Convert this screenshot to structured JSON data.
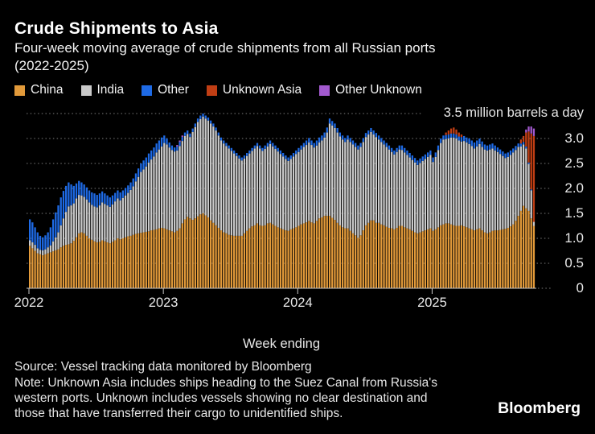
{
  "header": {
    "title": "Crude Shipments to Asia",
    "subtitle_lines": [
      "Four-week moving average of crude shipments from all Russian ports",
      "(2022-2025)"
    ]
  },
  "footer": {
    "source": "Source: Vessel tracking data monitored by Bloomberg",
    "note_lines": [
      "Note: Unknown Asia includes ships heading to the Suez Canal from Russia's",
      "western ports. Unknown includes vessels showing no clear destination and",
      "those that have transferred their cargo to unidentified ships."
    ],
    "brand": "Bloomberg"
  },
  "chart_data": {
    "type": "bar",
    "stacked": true,
    "title": "Crude Shipments to Asia",
    "subtitle": "Four-week moving average of crude shipments from all Russian ports (2022-2025)",
    "unit": "million barrels a day",
    "x_label": "Week ending",
    "legend_position": "top",
    "grid": "dotted-horizontal",
    "background_color": "#000000",
    "y_axis": {
      "min": 0,
      "max": 3.5,
      "ticks": [
        {
          "label": "0",
          "value": 0
        },
        {
          "label": "0.5",
          "value": 0.5
        },
        {
          "label": "1.0",
          "value": 1.0
        },
        {
          "label": "1.5",
          "value": 1.5
        },
        {
          "label": "2.0",
          "value": 2.0
        },
        {
          "label": "2.5",
          "value": 2.5
        },
        {
          "label": "3.0",
          "value": 3.0
        }
      ],
      "top_tick": {
        "label": "3.5 million barrels a day",
        "value": 3.5
      }
    },
    "x_axis": {
      "unit": "week",
      "ticks": [
        {
          "label": "2022",
          "week": 0
        },
        {
          "label": "2023",
          "week": 52
        },
        {
          "label": "2024",
          "week": 104
        },
        {
          "label": "2025",
          "week": 156
        }
      ]
    },
    "series": [
      {
        "key": "china",
        "name": "China",
        "color": "#E29A3A"
      },
      {
        "key": "india",
        "name": "India",
        "color": "#C9C9C9"
      },
      {
        "key": "other",
        "name": "Other",
        "color": "#1E6AE5"
      },
      {
        "key": "unknown_asia",
        "name": "Unknown Asia",
        "color": "#C03E14"
      },
      {
        "key": "other_unknown",
        "name": "Other Unknown",
        "color": "#A259CE"
      }
    ],
    "weeks_order": [
      "china",
      "india",
      "other",
      "unknown_asia",
      "other_unknown"
    ],
    "weeks": [
      [
        0.85,
        0.11,
        0.42,
        0,
        0
      ],
      [
        0.8,
        0.12,
        0.4,
        0,
        0
      ],
      [
        0.75,
        0.12,
        0.35,
        0,
        0
      ],
      [
        0.7,
        0.1,
        0.32,
        0,
        0
      ],
      [
        0.68,
        0.09,
        0.28,
        0,
        0
      ],
      [
        0.66,
        0.1,
        0.26,
        0,
        0
      ],
      [
        0.68,
        0.1,
        0.28,
        0,
        0
      ],
      [
        0.7,
        0.12,
        0.3,
        0,
        0
      ],
      [
        0.72,
        0.14,
        0.36,
        0,
        0
      ],
      [
        0.74,
        0.2,
        0.44,
        0,
        0
      ],
      [
        0.76,
        0.26,
        0.5,
        0,
        0
      ],
      [
        0.78,
        0.34,
        0.54,
        0,
        0
      ],
      [
        0.82,
        0.44,
        0.56,
        0,
        0
      ],
      [
        0.85,
        0.55,
        0.55,
        0,
        0
      ],
      [
        0.87,
        0.66,
        0.52,
        0,
        0
      ],
      [
        0.88,
        0.76,
        0.48,
        0,
        0
      ],
      [
        0.9,
        0.76,
        0.42,
        0,
        0
      ],
      [
        0.95,
        0.75,
        0.35,
        0,
        0
      ],
      [
        1.02,
        0.78,
        0.3,
        0,
        0
      ],
      [
        1.1,
        0.77,
        0.28,
        0,
        0
      ],
      [
        1.12,
        0.74,
        0.26,
        0,
        0
      ],
      [
        1.1,
        0.73,
        0.25,
        0,
        0
      ],
      [
        1.05,
        0.73,
        0.24,
        0,
        0
      ],
      [
        1.0,
        0.72,
        0.24,
        0,
        0
      ],
      [
        0.97,
        0.7,
        0.25,
        0,
        0
      ],
      [
        0.94,
        0.7,
        0.26,
        0,
        0
      ],
      [
        0.92,
        0.7,
        0.25,
        0,
        0
      ],
      [
        0.93,
        0.73,
        0.24,
        0,
        0
      ],
      [
        0.96,
        0.76,
        0.22,
        0,
        0
      ],
      [
        0.94,
        0.75,
        0.21,
        0,
        0
      ],
      [
        0.92,
        0.74,
        0.2,
        0,
        0
      ],
      [
        0.9,
        0.73,
        0.19,
        0,
        0
      ],
      [
        0.93,
        0.75,
        0.18,
        0,
        0
      ],
      [
        0.96,
        0.78,
        0.17,
        0,
        0
      ],
      [
        1.0,
        0.8,
        0.16,
        0,
        0
      ],
      [
        0.98,
        0.78,
        0.16,
        0,
        0
      ],
      [
        1.0,
        0.81,
        0.15,
        0,
        0
      ],
      [
        1.02,
        0.84,
        0.15,
        0,
        0
      ],
      [
        1.04,
        0.87,
        0.15,
        0,
        0
      ],
      [
        1.05,
        0.92,
        0.15,
        0,
        0
      ],
      [
        1.07,
        0.97,
        0.16,
        0,
        0
      ],
      [
        1.09,
        1.05,
        0.16,
        0,
        0
      ],
      [
        1.1,
        1.13,
        0.17,
        0,
        0
      ],
      [
        1.11,
        1.22,
        0.17,
        0,
        0
      ],
      [
        1.12,
        1.26,
        0.18,
        0,
        0
      ],
      [
        1.13,
        1.31,
        0.18,
        0,
        0
      ],
      [
        1.14,
        1.38,
        0.18,
        0,
        0
      ],
      [
        1.16,
        1.42,
        0.18,
        0,
        0
      ],
      [
        1.17,
        1.47,
        0.18,
        0,
        0
      ],
      [
        1.18,
        1.54,
        0.18,
        0,
        0
      ],
      [
        1.2,
        1.58,
        0.18,
        0,
        0
      ],
      [
        1.21,
        1.63,
        0.18,
        0,
        0
      ],
      [
        1.2,
        1.71,
        0.15,
        0,
        0
      ],
      [
        1.18,
        1.7,
        0.12,
        0,
        0
      ],
      [
        1.16,
        1.66,
        0.1,
        0,
        0
      ],
      [
        1.14,
        1.63,
        0.09,
        0,
        0
      ],
      [
        1.12,
        1.62,
        0.08,
        0,
        0
      ],
      [
        1.15,
        1.61,
        0.08,
        0,
        0.03
      ],
      [
        1.2,
        1.65,
        0.08,
        0,
        0.03
      ],
      [
        1.3,
        1.65,
        0.08,
        0,
        0.03
      ],
      [
        1.38,
        1.67,
        0.07,
        0,
        0
      ],
      [
        1.43,
        1.66,
        0.07,
        0,
        0
      ],
      [
        1.4,
        1.63,
        0.07,
        0,
        0
      ],
      [
        1.37,
        1.76,
        0.07,
        0,
        0
      ],
      [
        1.4,
        1.83,
        0.07,
        0,
        0
      ],
      [
        1.44,
        1.89,
        0.07,
        0,
        0
      ],
      [
        1.48,
        1.91,
        0.07,
        0,
        0
      ],
      [
        1.5,
        1.94,
        0.06,
        0,
        0
      ],
      [
        1.46,
        1.94,
        0.06,
        0,
        0
      ],
      [
        1.42,
        1.94,
        0.06,
        0,
        0
      ],
      [
        1.36,
        1.94,
        0.06,
        0,
        0
      ],
      [
        1.31,
        1.93,
        0.06,
        0,
        0
      ],
      [
        1.26,
        1.9,
        0.06,
        0,
        0
      ],
      [
        1.21,
        1.85,
        0.06,
        0,
        0
      ],
      [
        1.16,
        1.8,
        0.06,
        0,
        0
      ],
      [
        1.12,
        1.78,
        0.06,
        0,
        0
      ],
      [
        1.1,
        1.75,
        0.06,
        0,
        0
      ],
      [
        1.07,
        1.73,
        0.06,
        0,
        0
      ],
      [
        1.06,
        1.69,
        0.06,
        0,
        0
      ],
      [
        1.05,
        1.65,
        0.06,
        0,
        0
      ],
      [
        1.05,
        1.6,
        0.06,
        0,
        0
      ],
      [
        1.05,
        1.55,
        0.06,
        0,
        0
      ],
      [
        1.05,
        1.51,
        0.06,
        0,
        0
      ],
      [
        1.1,
        1.5,
        0.06,
        0,
        0
      ],
      [
        1.15,
        1.5,
        0.06,
        0,
        0
      ],
      [
        1.2,
        1.5,
        0.06,
        0,
        0
      ],
      [
        1.24,
        1.51,
        0.06,
        0,
        0
      ],
      [
        1.26,
        1.54,
        0.06,
        0,
        0
      ],
      [
        1.3,
        1.55,
        0.06,
        0,
        0
      ],
      [
        1.26,
        1.54,
        0.06,
        0,
        0
      ],
      [
        1.25,
        1.5,
        0.06,
        0,
        0
      ],
      [
        1.26,
        1.53,
        0.07,
        0,
        0
      ],
      [
        1.3,
        1.54,
        0.07,
        0,
        0
      ],
      [
        1.31,
        1.58,
        0.07,
        0,
        0
      ],
      [
        1.28,
        1.56,
        0.07,
        0,
        0
      ],
      [
        1.25,
        1.54,
        0.07,
        0,
        0
      ],
      [
        1.22,
        1.52,
        0.07,
        0,
        0
      ],
      [
        1.2,
        1.49,
        0.07,
        0,
        0
      ],
      [
        1.18,
        1.46,
        0.07,
        0,
        0
      ],
      [
        1.16,
        1.43,
        0.07,
        0,
        0
      ],
      [
        1.15,
        1.4,
        0.07,
        0,
        0
      ],
      [
        1.18,
        1.41,
        0.07,
        0,
        0
      ],
      [
        1.2,
        1.44,
        0.07,
        0,
        0
      ],
      [
        1.22,
        1.47,
        0.07,
        0,
        0
      ],
      [
        1.25,
        1.48,
        0.08,
        0,
        0
      ],
      [
        1.28,
        1.5,
        0.08,
        0,
        0
      ],
      [
        1.3,
        1.53,
        0.08,
        0,
        0
      ],
      [
        1.32,
        1.55,
        0.09,
        0,
        0
      ],
      [
        1.35,
        1.57,
        0.09,
        0,
        0
      ],
      [
        1.32,
        1.55,
        0.09,
        0,
        0
      ],
      [
        1.3,
        1.52,
        0.09,
        0,
        0
      ],
      [
        1.35,
        1.51,
        0.1,
        0,
        0
      ],
      [
        1.4,
        1.52,
        0.1,
        0,
        0
      ],
      [
        1.42,
        1.54,
        0.1,
        0,
        0
      ],
      [
        1.45,
        1.57,
        0.1,
        0,
        0
      ],
      [
        1.45,
        1.67,
        0.1,
        0,
        0
      ],
      [
        1.45,
        1.85,
        0.1,
        0,
        0
      ],
      [
        1.41,
        1.85,
        0.09,
        0,
        0
      ],
      [
        1.37,
        1.84,
        0.09,
        0,
        0
      ],
      [
        1.31,
        1.81,
        0.09,
        0,
        0
      ],
      [
        1.26,
        1.78,
        0.08,
        0,
        0
      ],
      [
        1.22,
        1.76,
        0.08,
        0,
        0
      ],
      [
        1.2,
        1.73,
        0.08,
        0,
        0
      ],
      [
        1.2,
        1.78,
        0.08,
        0,
        0
      ],
      [
        1.15,
        1.78,
        0.08,
        0,
        0
      ],
      [
        1.1,
        1.78,
        0.08,
        0,
        0
      ],
      [
        1.06,
        1.77,
        0.08,
        0,
        0
      ],
      [
        1.01,
        1.77,
        0.08,
        0,
        0
      ],
      [
        1.06,
        1.77,
        0.08,
        0,
        0
      ],
      [
        1.16,
        1.77,
        0.08,
        0,
        0
      ],
      [
        1.26,
        1.77,
        0.08,
        0,
        0
      ],
      [
        1.31,
        1.77,
        0.08,
        0,
        0
      ],
      [
        1.36,
        1.77,
        0.08,
        0,
        0
      ],
      [
        1.36,
        1.72,
        0.08,
        0,
        0
      ],
      [
        1.31,
        1.72,
        0.08,
        0,
        0
      ],
      [
        1.31,
        1.67,
        0.08,
        0,
        0
      ],
      [
        1.28,
        1.65,
        0.08,
        0,
        0
      ],
      [
        1.26,
        1.62,
        0.08,
        0,
        0
      ],
      [
        1.23,
        1.6,
        0.08,
        0,
        0
      ],
      [
        1.21,
        1.57,
        0.08,
        0,
        0
      ],
      [
        1.2,
        1.53,
        0.08,
        0,
        0
      ],
      [
        1.18,
        1.5,
        0.08,
        0,
        0
      ],
      [
        1.21,
        1.52,
        0.08,
        0,
        0
      ],
      [
        1.25,
        1.53,
        0.08,
        0,
        0
      ],
      [
        1.25,
        1.52,
        0.09,
        0,
        0
      ],
      [
        1.22,
        1.5,
        0.09,
        0,
        0
      ],
      [
        1.2,
        1.47,
        0.09,
        0,
        0
      ],
      [
        1.18,
        1.44,
        0.09,
        0,
        0
      ],
      [
        1.15,
        1.42,
        0.09,
        0,
        0
      ],
      [
        1.12,
        1.4,
        0.09,
        0,
        0
      ],
      [
        1.1,
        1.37,
        0.09,
        0,
        0
      ],
      [
        1.12,
        1.39,
        0.09,
        0,
        0
      ],
      [
        1.14,
        1.41,
        0.09,
        0,
        0
      ],
      [
        1.16,
        1.43,
        0.09,
        0,
        0
      ],
      [
        1.18,
        1.45,
        0.09,
        0,
        0
      ],
      [
        1.2,
        1.47,
        0.09,
        0,
        0
      ],
      [
        1.15,
        1.38,
        0.09,
        0,
        0
      ],
      [
        1.18,
        1.45,
        0.09,
        0,
        0
      ],
      [
        1.22,
        1.55,
        0.09,
        0,
        0
      ],
      [
        1.26,
        1.65,
        0.09,
        0,
        0
      ],
      [
        1.28,
        1.7,
        0.08,
        0,
        0
      ],
      [
        1.3,
        1.69,
        0.08,
        0.05,
        0
      ],
      [
        1.3,
        1.7,
        0.08,
        0.08,
        0
      ],
      [
        1.28,
        1.74,
        0.08,
        0.1,
        0
      ],
      [
        1.26,
        1.76,
        0.08,
        0.12,
        0
      ],
      [
        1.25,
        1.75,
        0.08,
        0.1,
        0
      ],
      [
        1.25,
        1.71,
        0.08,
        0.08,
        0
      ],
      [
        1.26,
        1.68,
        0.09,
        0.05,
        0
      ],
      [
        1.24,
        1.71,
        0.1,
        0,
        0
      ],
      [
        1.22,
        1.7,
        0.1,
        0,
        0
      ],
      [
        1.2,
        1.69,
        0.11,
        0,
        0
      ],
      [
        1.18,
        1.67,
        0.11,
        0,
        0
      ],
      [
        1.16,
        1.64,
        0.12,
        0,
        0
      ],
      [
        1.18,
        1.66,
        0.12,
        0,
        0
      ],
      [
        1.2,
        1.69,
        0.11,
        0,
        0
      ],
      [
        1.16,
        1.67,
        0.11,
        0,
        0
      ],
      [
        1.12,
        1.66,
        0.1,
        0,
        0
      ],
      [
        1.1,
        1.66,
        0.1,
        0,
        0
      ],
      [
        1.12,
        1.66,
        0.1,
        0,
        0
      ],
      [
        1.15,
        1.65,
        0.1,
        0,
        0
      ],
      [
        1.16,
        1.6,
        0.1,
        0,
        0
      ],
      [
        1.16,
        1.57,
        0.09,
        0,
        0
      ],
      [
        1.17,
        1.52,
        0.09,
        0,
        0
      ],
      [
        1.18,
        1.47,
        0.09,
        0,
        0
      ],
      [
        1.19,
        1.42,
        0.09,
        0,
        0
      ],
      [
        1.21,
        1.42,
        0.09,
        0,
        0
      ],
      [
        1.24,
        1.43,
        0.09,
        0,
        0
      ],
      [
        1.28,
        1.44,
        0.08,
        0,
        0
      ],
      [
        1.35,
        1.42,
        0.08,
        0,
        0
      ],
      [
        1.45,
        1.38,
        0.07,
        0,
        0
      ],
      [
        1.55,
        1.29,
        0.06,
        0.08,
        0
      ],
      [
        1.65,
        1.23,
        0.05,
        0.12,
        0
      ],
      [
        1.6,
        1.2,
        0.04,
        0.28,
        0.06
      ],
      [
        1.55,
        0.94,
        0.03,
        0.62,
        0.1
      ],
      [
        1.4,
        0.56,
        0.02,
        1.12,
        0.14
      ],
      [
        1.25,
        0.08,
        0.0,
        1.72,
        0.15
      ]
    ]
  }
}
